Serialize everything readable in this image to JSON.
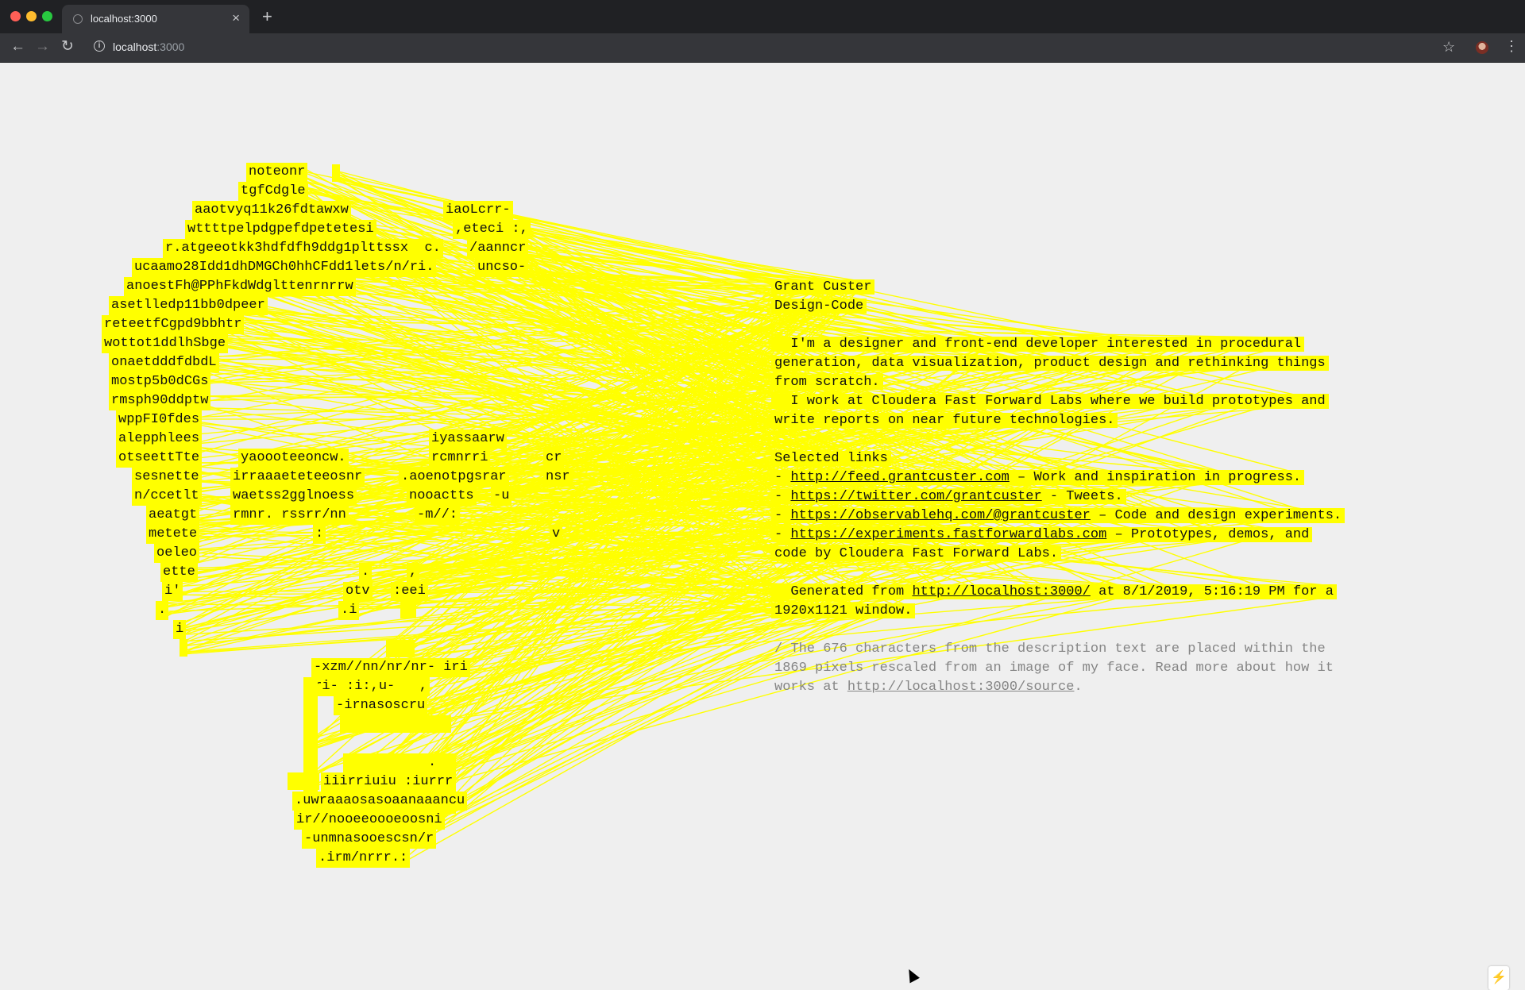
{
  "browser": {
    "tab_title": "localhost:3000",
    "url_host": "localhost",
    "url_port": ":3000"
  },
  "portrait_fragments": [
    "noteonr",
    "tgfCdgle",
    "aaotvyq11k26fdtawxw",
    "iaoLcrr-",
    "wttttpelpdgpefdpetetesi",
    ",eteci :,",
    "r.atgeeotkk3hdfdfh9ddg1plttssx  c.",
    "/aanncr",
    "ucaamo28Idd1dhDMGCh0hhCFdd1lets/n/ri.",
    "uncso-",
    "anoestFh@PPhFkdWdglttenrnrrw",
    "asetlledp11bb0dpeer",
    "reteetfCgpd9bbhtr",
    "wottot1ddlhSbge",
    "onaetdddfdbdL",
    "mostp5b0dCGs",
    "rmsph90ddptw",
    "wppFI0fdes",
    "alepphlees",
    "iyassaarw",
    "otseettTte",
    "yaoooteeoncw.",
    "rcmnrri",
    "cr",
    "sesnette",
    "irraaaeteteeosnr",
    ".aoenotpgsrar",
    "nsr",
    "n/ccetlt",
    "waetss2gglnoess",
    "nooactts",
    "-u",
    "aeatgt",
    "rmnr. rssrr/nn",
    "-m//:",
    "metete",
    ":",
    "v",
    "oeleo",
    "ette",
    ".",
    ",",
    "i'",
    "otv",
    ":eei",
    ".",
    ".i",
    "i",
    "-xzm//nn/nr/nr- iri",
    "uri- :i:,u-   ,",
    "-irnasoscru",
    ".",
    "iiirriuiu :iurrr",
    ".uwraaaosasoaanaaancu",
    "ir//nooeeoooeoosni",
    "-unmnasooescsn/r",
    ".irm/nrrr.:"
  ],
  "info": {
    "name": "Grant Custer",
    "subtitle": "Design-Code",
    "bio1_l1": "  I'm a designer and front-end developer interested in procedural",
    "bio1_l2": "generation, data visualization, product design and rethinking things",
    "bio1_l3": "from scratch.",
    "bio2_l1": "  I work at Cloudera Fast Forward Labs where we build prototypes and",
    "bio2_l2": "write reports on near future technologies.",
    "links_heading": "Selected links",
    "links": [
      {
        "url": "http://feed.grantcuster.com",
        "desc": " – Work and inspiration in progress."
      },
      {
        "url": "https://twitter.com/grantcuster",
        "desc": " - Tweets."
      },
      {
        "url": "https://observablehq.com/@grantcuster",
        "desc": " – Code and design experiments."
      },
      {
        "url": "https://experiments.fastforwardlabs.com",
        "desc": " – Prototypes, demos, and"
      }
    ],
    "links_cont": "code by Cloudera Fast Forward Labs.",
    "gen_prefix": "  Generated from ",
    "gen_url": "http://localhost:3000/",
    "gen_suffix": " at 8/1/2019, 5:16:19 PM for a",
    "gen_l2": "1920x1121 window.",
    "note_l1": "/ The 676 characters from the description text are placed within the",
    "note_l2": "1869 pixels rescaled from an image of my face. Read more about how it",
    "note_prefix": "works at ",
    "note_url": "http://localhost:3000/source",
    "note_suffix": "."
  },
  "colors": {
    "highlight": "#ffff00",
    "page_bg": "#efefef",
    "chrome_dark": "#202124",
    "chrome_toolbar": "#35363a"
  },
  "icons": [
    "back-arrow-icon",
    "forward-arrow-icon",
    "reload-icon",
    "info-icon",
    "star-icon",
    "kebab-menu-icon",
    "bolt-icon",
    "cursor-icon"
  ]
}
